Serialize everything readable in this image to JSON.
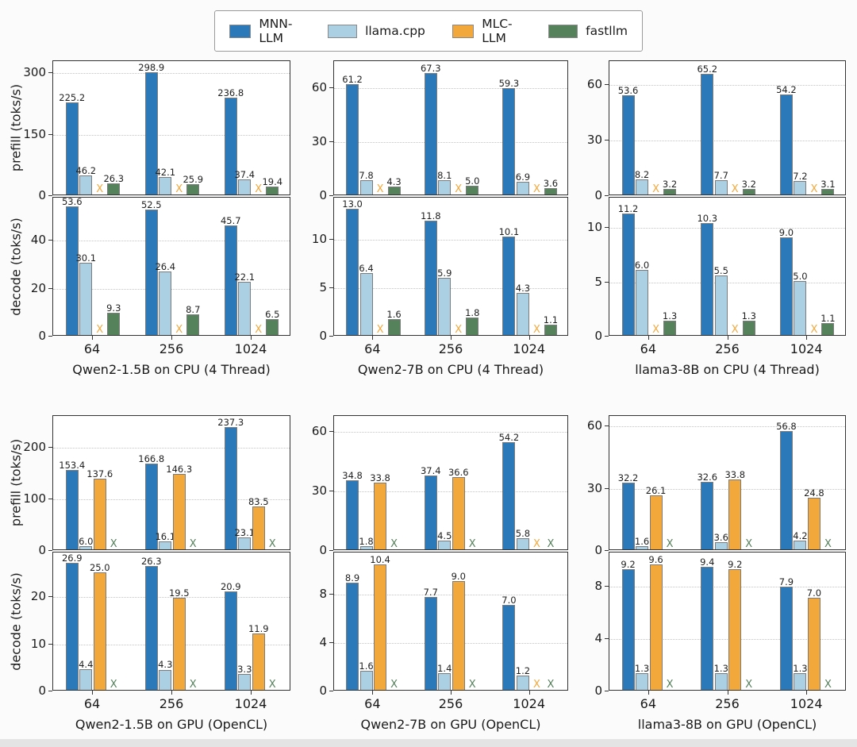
{
  "legend": {
    "items": [
      {
        "label": "MNN-LLM",
        "color": "#2b79b8"
      },
      {
        "label": "llama.cpp",
        "color": "#abcfe3"
      },
      {
        "label": "MLC-LLM",
        "color": "#f3a83c"
      },
      {
        "label": "fastllm",
        "color": "#55815b"
      }
    ]
  },
  "missing_marker": "X",
  "chart_data": {
    "type": "grouped-bar",
    "series_names": [
      "MNN-LLM",
      "llama.cpp",
      "MLC-LLM",
      "fastllm"
    ],
    "categories": [
      "64",
      "256",
      "1024"
    ],
    "figures": [
      {
        "name": "CPU",
        "rows": [
          {
            "ylabel": "prefill (toks/s)",
            "panels": [
              {
                "yticks": [
                  0,
                  150,
                  300
                ],
                "ylim": [
                  0,
                  330
                ],
                "series": [
                  {
                    "name": "MNN-LLM",
                    "values": [
                      225.2,
                      298.9,
                      236.8
                    ]
                  },
                  {
                    "name": "llama.cpp",
                    "values": [
                      46.2,
                      42.1,
                      37.4
                    ]
                  },
                  {
                    "name": "MLC-LLM",
                    "values": [
                      null,
                      null,
                      null
                    ]
                  },
                  {
                    "name": "fastllm",
                    "values": [
                      26.3,
                      25.9,
                      19.4
                    ]
                  }
                ]
              },
              {
                "yticks": [
                  0,
                  30,
                  60
                ],
                "ylim": [
                  0,
                  75
                ],
                "series": [
                  {
                    "name": "MNN-LLM",
                    "values": [
                      61.2,
                      67.3,
                      59.3
                    ]
                  },
                  {
                    "name": "llama.cpp",
                    "values": [
                      7.8,
                      8.1,
                      6.9
                    ]
                  },
                  {
                    "name": "MLC-LLM",
                    "values": [
                      null,
                      null,
                      null
                    ]
                  },
                  {
                    "name": "fastllm",
                    "values": [
                      4.3,
                      5.0,
                      3.6
                    ]
                  }
                ]
              },
              {
                "yticks": [
                  0,
                  30,
                  60
                ],
                "ylim": [
                  0,
                  73
                ],
                "series": [
                  {
                    "name": "MNN-LLM",
                    "values": [
                      53.6,
                      65.2,
                      54.2
                    ]
                  },
                  {
                    "name": "llama.cpp",
                    "values": [
                      8.2,
                      7.7,
                      7.2
                    ]
                  },
                  {
                    "name": "MLC-LLM",
                    "values": [
                      null,
                      null,
                      null
                    ]
                  },
                  {
                    "name": "fastllm",
                    "values": [
                      3.2,
                      3.2,
                      3.1
                    ]
                  }
                ]
              }
            ]
          },
          {
            "ylabel": "decode (toks/s)",
            "panels": [
              {
                "title": "Qwen2-1.5B on CPU (4 Thread)",
                "yticks": [
                  0,
                  20,
                  40
                ],
                "ylim": [
                  0,
                  58
                ],
                "series": [
                  {
                    "name": "MNN-LLM",
                    "values": [
                      53.6,
                      52.5,
                      45.7
                    ]
                  },
                  {
                    "name": "llama.cpp",
                    "values": [
                      30.1,
                      26.4,
                      22.1
                    ]
                  },
                  {
                    "name": "MLC-LLM",
                    "values": [
                      null,
                      null,
                      null
                    ]
                  },
                  {
                    "name": "fastllm",
                    "values": [
                      9.3,
                      8.7,
                      6.5
                    ]
                  }
                ]
              },
              {
                "title": "Qwen2-7B on CPU (4 Thread)",
                "yticks": [
                  0,
                  5,
                  10
                ],
                "ylim": [
                  0,
                  14.3
                ],
                "series": [
                  {
                    "name": "MNN-LLM",
                    "values": [
                      13.0,
                      11.8,
                      10.1
                    ]
                  },
                  {
                    "name": "llama.cpp",
                    "values": [
                      6.4,
                      5.9,
                      4.3
                    ]
                  },
                  {
                    "name": "MLC-LLM",
                    "values": [
                      null,
                      null,
                      null
                    ]
                  },
                  {
                    "name": "fastllm",
                    "values": [
                      1.6,
                      1.8,
                      1.1
                    ]
                  }
                ]
              },
              {
                "title": "llama3-8B on CPU (4 Thread)",
                "yticks": [
                  0,
                  5,
                  10
                ],
                "ylim": [
                  0,
                  12.8
                ],
                "series": [
                  {
                    "name": "MNN-LLM",
                    "values": [
                      11.2,
                      10.3,
                      9.0
                    ]
                  },
                  {
                    "name": "llama.cpp",
                    "values": [
                      6.0,
                      5.5,
                      5.0
                    ]
                  },
                  {
                    "name": "MLC-LLM",
                    "values": [
                      null,
                      null,
                      null
                    ]
                  },
                  {
                    "name": "fastllm",
                    "values": [
                      1.3,
                      1.3,
                      1.1
                    ]
                  }
                ]
              }
            ]
          }
        ]
      },
      {
        "name": "GPU",
        "rows": [
          {
            "ylabel": "prefill (toks/s)",
            "panels": [
              {
                "yticks": [
                  0,
                  100,
                  200
                ],
                "ylim": [
                  0,
                  262
                ],
                "series": [
                  {
                    "name": "MNN-LLM",
                    "values": [
                      153.4,
                      166.8,
                      237.3
                    ]
                  },
                  {
                    "name": "llama.cpp",
                    "values": [
                      6.0,
                      16.1,
                      23.1
                    ]
                  },
                  {
                    "name": "MLC-LLM",
                    "values": [
                      137.6,
                      146.3,
                      83.5
                    ]
                  },
                  {
                    "name": "fastllm",
                    "values": [
                      null,
                      null,
                      null
                    ]
                  }
                ]
              },
              {
                "yticks": [
                  0,
                  30,
                  60
                ],
                "ylim": [
                  0,
                  68
                ],
                "series": [
                  {
                    "name": "MNN-LLM",
                    "values": [
                      34.8,
                      37.4,
                      54.2
                    ]
                  },
                  {
                    "name": "llama.cpp",
                    "values": [
                      1.8,
                      4.5,
                      5.8
                    ]
                  },
                  {
                    "name": "MLC-LLM",
                    "values": [
                      33.8,
                      36.6,
                      null
                    ]
                  },
                  {
                    "name": "fastllm",
                    "values": [
                      null,
                      null,
                      null
                    ]
                  }
                ]
              },
              {
                "yticks": [
                  0,
                  30,
                  60
                ],
                "ylim": [
                  0,
                  65
                ],
                "series": [
                  {
                    "name": "MNN-LLM",
                    "values": [
                      32.2,
                      32.6,
                      56.8
                    ]
                  },
                  {
                    "name": "llama.cpp",
                    "values": [
                      1.6,
                      3.6,
                      4.2
                    ]
                  },
                  {
                    "name": "MLC-LLM",
                    "values": [
                      26.1,
                      33.8,
                      24.8
                    ]
                  },
                  {
                    "name": "fastllm",
                    "values": [
                      null,
                      null,
                      null
                    ]
                  }
                ]
              }
            ]
          },
          {
            "ylabel": "decode (toks/s)",
            "panels": [
              {
                "title": "Qwen2-1.5B on GPU (OpenCL)",
                "yticks": [
                  0,
                  10,
                  20
                ],
                "ylim": [
                  0,
                  29.5
                ],
                "series": [
                  {
                    "name": "MNN-LLM",
                    "values": [
                      26.9,
                      26.3,
                      20.9
                    ]
                  },
                  {
                    "name": "llama.cpp",
                    "values": [
                      4.4,
                      4.3,
                      3.3
                    ]
                  },
                  {
                    "name": "MLC-LLM",
                    "values": [
                      25.0,
                      19.5,
                      11.9
                    ]
                  },
                  {
                    "name": "fastllm",
                    "values": [
                      null,
                      null,
                      null
                    ]
                  }
                ]
              },
              {
                "title": "Qwen2-7B on GPU (OpenCL)",
                "yticks": [
                  0,
                  4,
                  8
                ],
                "ylim": [
                  0,
                  11.5
                ],
                "series": [
                  {
                    "name": "MNN-LLM",
                    "values": [
                      8.9,
                      7.7,
                      7.0
                    ]
                  },
                  {
                    "name": "llama.cpp",
                    "values": [
                      1.6,
                      1.4,
                      1.2
                    ]
                  },
                  {
                    "name": "MLC-LLM",
                    "values": [
                      10.4,
                      9.0,
                      null
                    ]
                  },
                  {
                    "name": "fastllm",
                    "values": [
                      null,
                      null,
                      null
                    ]
                  }
                ]
              },
              {
                "title": "llama3-8B on GPU (OpenCL)",
                "yticks": [
                  0,
                  4,
                  8
                ],
                "ylim": [
                  0,
                  10.6
                ],
                "series": [
                  {
                    "name": "MNN-LLM",
                    "values": [
                      9.2,
                      9.4,
                      7.9
                    ]
                  },
                  {
                    "name": "llama.cpp",
                    "values": [
                      1.3,
                      1.3,
                      1.3
                    ]
                  },
                  {
                    "name": "MLC-LLM",
                    "values": [
                      9.6,
                      9.2,
                      7.0
                    ]
                  },
                  {
                    "name": "fastllm",
                    "values": [
                      null,
                      null,
                      null
                    ]
                  }
                ]
              }
            ]
          }
        ]
      }
    ]
  }
}
